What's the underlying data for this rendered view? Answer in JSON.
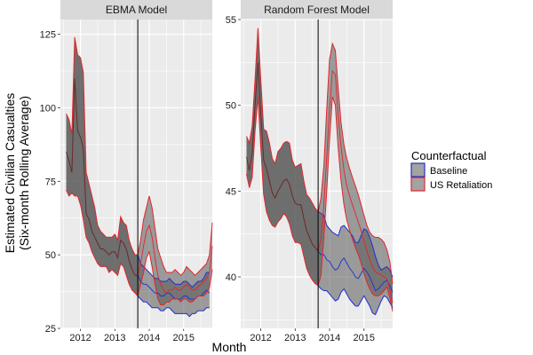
{
  "chart_data": {
    "type": "area",
    "xlabel": "Month",
    "ylabel_lines": [
      "Estimated Civilian Casualties",
      "(Six-month Rolling Average)"
    ],
    "legend": {
      "title": "Counterfactual",
      "position": "right",
      "entries": [
        {
          "name": "Baseline",
          "color": "#1f2fd0"
        },
        {
          "name": "US Retaliation",
          "color": "#e0262b"
        }
      ]
    },
    "grid": true,
    "background": "#ebebeb",
    "strip_color": "#d9d9d9",
    "band_fill": "#585858",
    "band_opacity": 0.55,
    "intervention_date": "2013-09",
    "panels": [
      {
        "title": "EBMA Model",
        "xlim": [
          "2011-06",
          "2015-11"
        ],
        "ylim": [
          25,
          130
        ],
        "x_ticks": [
          {
            "label": "2012",
            "value": "2012-01"
          },
          {
            "label": "2013",
            "value": "2013-01"
          },
          {
            "label": "2014",
            "value": "2014-01"
          },
          {
            "label": "2015",
            "value": "2015-01"
          }
        ],
        "y_ticks": [
          {
            "label": "25",
            "value": 25
          },
          {
            "label": "50",
            "value": 50
          },
          {
            "label": "75",
            "value": 75
          },
          {
            "label": "100",
            "value": 100
          },
          {
            "label": "125",
            "value": 125
          }
        ],
        "shared": {
          "x": [
            "2011-08",
            "2011-09",
            "2011-10",
            "2011-11",
            "2011-12",
            "2012-01",
            "2012-02",
            "2012-03",
            "2012-04",
            "2012-05",
            "2012-06",
            "2012-07",
            "2012-08",
            "2012-09",
            "2012-10",
            "2012-11",
            "2012-12",
            "2013-01",
            "2013-02",
            "2013-03",
            "2013-04",
            "2013-05",
            "2013-06",
            "2013-07",
            "2013-08",
            "2013-09"
          ],
          "upper": [
            98,
            96,
            91,
            124,
            118,
            117,
            112,
            78,
            74,
            70,
            66,
            60,
            58,
            57,
            56,
            56,
            56,
            57,
            55,
            63,
            61,
            60,
            55,
            52,
            50,
            50
          ],
          "mid": [
            85,
            82,
            78,
            110,
            92,
            90,
            86,
            64,
            62,
            58,
            56,
            54,
            52,
            52,
            51,
            50,
            51,
            51,
            49,
            55,
            54,
            52,
            48,
            45,
            43,
            43
          ],
          "lower": [
            72,
            70,
            71,
            70,
            70,
            67,
            62,
            56,
            54,
            51,
            49,
            47,
            46,
            46,
            46,
            44,
            45,
            44,
            43,
            47,
            46,
            43,
            40,
            38,
            37,
            36
          ]
        },
        "series": [
          {
            "name": "Baseline",
            "x": [
              "2013-09",
              "2013-10",
              "2013-11",
              "2013-12",
              "2014-01",
              "2014-02",
              "2014-03",
              "2014-04",
              "2014-05",
              "2014-06",
              "2014-07",
              "2014-08",
              "2014-09",
              "2014-10",
              "2014-11",
              "2014-12",
              "2015-01",
              "2015-02",
              "2015-03",
              "2015-04",
              "2015-05",
              "2015-06",
              "2015-07",
              "2015-08",
              "2015-09",
              "2015-10"
            ],
            "upper": [
              50,
              47,
              46,
              45,
              44,
              43,
              42,
              42,
              41,
              41,
              41,
              42,
              41,
              40,
              40,
              40,
              41,
              41,
              40,
              39,
              40,
              41,
              41,
              42,
              44,
              44
            ],
            "mid": [
              43,
              41,
              40,
              40,
              39,
              38,
              37,
              37,
              36,
              36,
              37,
              37,
              36,
              35,
              35,
              35,
              36,
              36,
              35,
              35,
              35,
              36,
              36,
              37,
              38,
              37
            ],
            "lower": [
              36,
              35,
              34,
              34,
              33,
              32,
              32,
              32,
              31,
              31,
              32,
              32,
              31,
              30,
              30,
              30,
              30,
              30,
              29,
              30,
              30,
              31,
              31,
              31,
              32,
              32
            ]
          },
          {
            "name": "US Retaliation",
            "x": [
              "2013-09",
              "2013-10",
              "2013-11",
              "2013-12",
              "2014-01",
              "2014-02",
              "2014-03",
              "2014-04",
              "2014-05",
              "2014-06",
              "2014-07",
              "2014-08",
              "2014-09",
              "2014-10",
              "2014-11",
              "2014-12",
              "2015-01",
              "2015-02",
              "2015-03",
              "2015-04",
              "2015-05",
              "2015-06",
              "2015-07",
              "2015-08",
              "2015-09",
              "2015-10",
              "2015-11"
            ],
            "upper": [
              50,
              55,
              62,
              66,
              70,
              66,
              59,
              52,
              49,
              46,
              44,
              44,
              44,
              45,
              44,
              43,
              44,
              46,
              45,
              44,
              43,
              44,
              45,
              46,
              47,
              50,
              61
            ],
            "mid": [
              43,
              47,
              53,
              58,
              60,
              56,
              49,
              43,
              40,
              38,
              37,
              38,
              38,
              39,
              38,
              38,
              39,
              40,
              39,
              38,
              38,
              39,
              40,
              41,
              42,
              44,
              53
            ],
            "lower": [
              36,
              40,
              44,
              49,
              51,
              46,
              40,
              35,
              33,
              33,
              34,
              34,
              35,
              35,
              35,
              34,
              35,
              35,
              34,
              34,
              35,
              36,
              36,
              36,
              37,
              39,
              45
            ]
          }
        ]
      },
      {
        "title": "Random Forest Model",
        "xlim": [
          "2011-06",
          "2015-11"
        ],
        "ylim": [
          37,
          55
        ],
        "x_ticks": [
          {
            "label": "2012",
            "value": "2012-01"
          },
          {
            "label": "2013",
            "value": "2013-01"
          },
          {
            "label": "2014",
            "value": "2014-01"
          },
          {
            "label": "2015",
            "value": "2015-01"
          }
        ],
        "y_ticks": [
          {
            "label": "40",
            "value": 40
          },
          {
            "label": "45",
            "value": 45
          },
          {
            "label": "50",
            "value": 50
          },
          {
            "label": "55",
            "value": 55
          }
        ],
        "shared": {
          "x": [
            "2011-08",
            "2011-09",
            "2011-10",
            "2011-11",
            "2011-12",
            "2012-01",
            "2012-02",
            "2012-03",
            "2012-04",
            "2012-05",
            "2012-06",
            "2012-07",
            "2012-08",
            "2012-09",
            "2012-10",
            "2012-11",
            "2012-12",
            "2013-01",
            "2013-02",
            "2013-03",
            "2013-04",
            "2013-05",
            "2013-06",
            "2013-07",
            "2013-08",
            "2013-09"
          ],
          "upper": [
            48.2,
            47.8,
            48.8,
            51.5,
            54.5,
            51.5,
            48.6,
            48.5,
            47.8,
            46.9,
            46.6,
            47.3,
            47.5,
            47.8,
            47.9,
            47.8,
            46.8,
            46.4,
            46.5,
            46.6,
            45.6,
            44.8,
            44.6,
            44.3,
            44.0,
            43.8
          ],
          "mid": [
            47.0,
            46.2,
            47.2,
            50.0,
            52.5,
            49.5,
            46.8,
            46.3,
            45.6,
            44.9,
            44.6,
            45.0,
            45.3,
            45.6,
            45.7,
            45.4,
            44.7,
            44.3,
            44.2,
            44.2,
            43.4,
            42.7,
            42.3,
            41.9,
            41.7,
            41.5
          ],
          "lower": [
            46.0,
            45.2,
            45.8,
            48.5,
            50.5,
            47.5,
            44.8,
            43.8,
            43.3,
            43.0,
            42.9,
            43.2,
            43.4,
            43.7,
            43.5,
            43.1,
            42.4,
            42.0,
            42.0,
            41.9,
            41.2,
            40.5,
            40.1,
            39.8,
            39.6,
            39.5
          ]
        },
        "series": [
          {
            "name": "Baseline",
            "x": [
              "2013-09",
              "2013-10",
              "2013-11",
              "2013-12",
              "2014-01",
              "2014-02",
              "2014-03",
              "2014-04",
              "2014-05",
              "2014-06",
              "2014-07",
              "2014-08",
              "2014-09",
              "2014-10",
              "2014-11",
              "2014-12",
              "2015-01",
              "2015-02",
              "2015-03",
              "2015-04",
              "2015-05",
              "2015-06",
              "2015-07",
              "2015-08",
              "2015-09",
              "2015-10",
              "2015-11"
            ],
            "upper": [
              43.8,
              43.7,
              43.6,
              43.0,
              42.8,
              42.6,
              42.5,
              42.4,
              42.9,
              43.0,
              42.8,
              42.6,
              42.4,
              42.0,
              42.0,
              42.4,
              42.8,
              42.7,
              42.3,
              41.8,
              41.2,
              40.7,
              40.4,
              40.5,
              40.6,
              40.4,
              40.0
            ],
            "mid": [
              41.5,
              41.3,
              41.3,
              41.0,
              40.9,
              40.6,
              40.4,
              40.5,
              40.9,
              41.1,
              40.8,
              40.5,
              40.3,
              40.0,
              39.9,
              40.2,
              40.5,
              40.3,
              40.0,
              39.6,
              39.2,
              39.3,
              39.5,
              39.7,
              39.8,
              39.5,
              39.1
            ],
            "lower": [
              39.5,
              39.3,
              39.2,
              39.2,
              39.0,
              38.8,
              38.6,
              38.7,
              39.1,
              39.3,
              39.0,
              38.7,
              38.5,
              38.3,
              38.3,
              38.6,
              38.9,
              38.6,
              38.3,
              37.9,
              37.8,
              38.2,
              38.6,
              38.9,
              38.8,
              38.5,
              38.2
            ]
          },
          {
            "name": "US Retaliation",
            "x": [
              "2013-09",
              "2013-10",
              "2013-11",
              "2013-12",
              "2014-01",
              "2014-02",
              "2014-03",
              "2014-04",
              "2014-05",
              "2014-06",
              "2014-07",
              "2014-08",
              "2014-09",
              "2014-10",
              "2014-11",
              "2014-12",
              "2015-01",
              "2015-02",
              "2015-03",
              "2015-04",
              "2015-05",
              "2015-06",
              "2015-07",
              "2015-08",
              "2015-09",
              "2015-10",
              "2015-11"
            ],
            "upper": [
              43.8,
              44.6,
              46.5,
              49.8,
              52.7,
              53.6,
              53.2,
              51.0,
              49.0,
              47.7,
              46.9,
              46.3,
              45.8,
              45.3,
              44.8,
              44.2,
              43.6,
              43.0,
              42.6,
              42.4,
              42.3,
              42.3,
              42.2,
              42.0,
              41.6,
              40.9,
              39.6
            ],
            "mid": [
              41.5,
              42.2,
              44.2,
              47.0,
              49.8,
              52.0,
              51.8,
              49.4,
              47.6,
              46.2,
              45.3,
              44.7,
              44.2,
              43.7,
              43.2,
              42.7,
              42.1,
              41.5,
              41.0,
              40.6,
              40.3,
              40.2,
              40.1,
              40.0,
              39.9,
              39.3,
              38.5
            ],
            "lower": [
              39.5,
              40.1,
              42.3,
              45.0,
              48.0,
              50.5,
              50.0,
              47.5,
              45.6,
              44.2,
              43.3,
              42.7,
              42.2,
              41.7,
              41.3,
              40.8,
              40.2,
              39.7,
              39.3,
              39.0,
              38.9,
              38.9,
              39.0,
              39.2,
              39.4,
              38.8,
              38.0
            ]
          }
        ]
      }
    ]
  }
}
